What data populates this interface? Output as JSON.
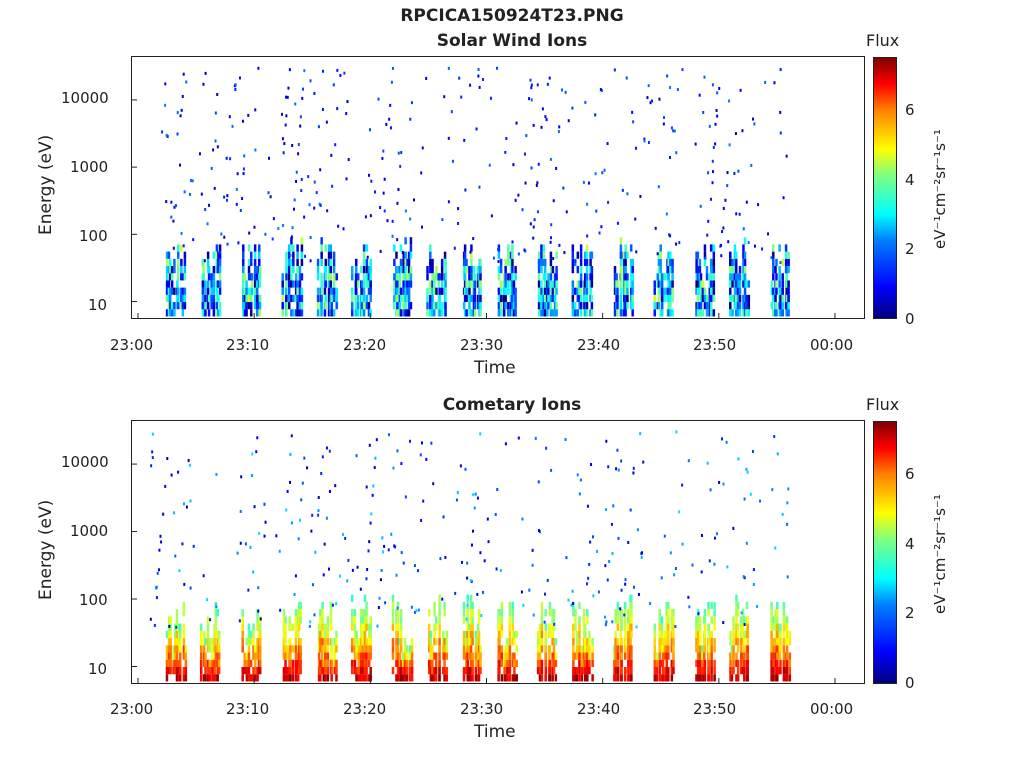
{
  "figure_title": "RPCICA150924T23.PNG",
  "chart_data": [
    {
      "type": "heatmap",
      "title": "Solar Wind Ions",
      "xlabel": "Time",
      "ylabel": "Energy (eV)",
      "x_tick_labels": [
        "23:00",
        "23:10",
        "23:20",
        "23:30",
        "23:40",
        "23:50",
        "00:00"
      ],
      "y_tick_labels": [
        "10",
        "100",
        "1000",
        "10000"
      ],
      "y_scale": "log",
      "colorbar": {
        "label": "Flux",
        "unit": "eV⁻¹cm⁻²sr⁻¹s⁻¹",
        "ticks": [
          "0",
          "2",
          "4",
          "6"
        ],
        "range": [
          0,
          7.3
        ]
      },
      "bursts_minutes": [
        3,
        6,
        9.5,
        13,
        16,
        19,
        22.5,
        25.5,
        28.5,
        31.5,
        35,
        38,
        41.5,
        45,
        48.5,
        51.5,
        55
      ],
      "intensity": "low"
    },
    {
      "type": "heatmap",
      "title": "Cometary Ions",
      "xlabel": "Time",
      "ylabel": "Energy (eV)",
      "x_tick_labels": [
        "23:00",
        "23:10",
        "23:20",
        "23:30",
        "23:40",
        "23:50",
        "00:00"
      ],
      "y_tick_labels": [
        "10",
        "100",
        "1000",
        "10000"
      ],
      "y_scale": "log",
      "colorbar": {
        "label": "Flux",
        "unit": "eV⁻¹cm⁻²sr⁻¹s⁻¹",
        "ticks": [
          "0",
          "2",
          "4",
          "6"
        ],
        "range": [
          0,
          7.3
        ]
      },
      "bursts_minutes": [
        3,
        6,
        9.5,
        13,
        16,
        19,
        22.5,
        25.5,
        28.5,
        31.5,
        35,
        38,
        41.5,
        45,
        48.5,
        51.5,
        55
      ],
      "intensity": "high"
    }
  ]
}
